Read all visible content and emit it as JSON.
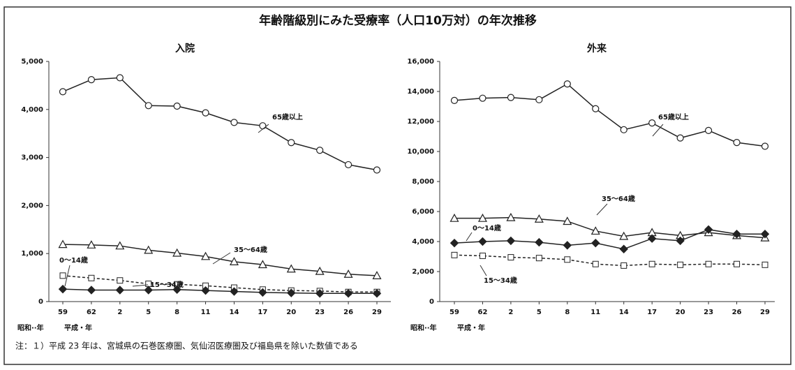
{
  "title": "年齢階級別にみた受療率（人口10万対）の年次推移",
  "note": "注：１）平成 23 年は、宮城県の石巻医療圏、気仙沼医療圏及び福島県を除いた数値である",
  "era_labels": [
    "昭和··年",
    "平成・年"
  ],
  "chart_data": [
    {
      "type": "line",
      "title": "入院",
      "categories": [
        "59",
        "62",
        "2",
        "5",
        "8",
        "11",
        "14",
        "17",
        "20",
        "23",
        "26",
        "29"
      ],
      "ylim": [
        0,
        5000
      ],
      "yticks": [
        0,
        {
          "value": 1000,
          "label": "1,000"
        },
        {
          "value": 2000,
          "label": "2,000"
        },
        {
          "value": 3000,
          "label": "3,000"
        },
        {
          "value": 4000,
          "label": "4,000"
        },
        {
          "value": 5000,
          "label": "5,000"
        }
      ],
      "series": [
        {
          "name": "65歳以上",
          "color": "#222",
          "marker": "circle",
          "dash": false,
          "values": [
            4370,
            4620,
            4660,
            4080,
            4070,
            3930,
            3730,
            3660,
            3310,
            3150,
            2850,
            2740
          ]
        },
        {
          "name": "35～64歳",
          "color": "#222",
          "marker": "triangle",
          "dash": false,
          "values": [
            1190,
            1180,
            1160,
            1070,
            1010,
            940,
            830,
            770,
            680,
            630,
            570,
            540
          ]
        },
        {
          "name": "15～34歳",
          "color": "#222",
          "marker": "square",
          "dash": true,
          "values": [
            540,
            490,
            440,
            370,
            360,
            330,
            290,
            250,
            230,
            220,
            200,
            200
          ]
        },
        {
          "name": "0～14歳",
          "color": "#222",
          "marker": "diamond",
          "dash": false,
          "values": [
            260,
            240,
            240,
            240,
            250,
            230,
            210,
            190,
            180,
            170,
            170,
            170
          ]
        }
      ]
    },
    {
      "type": "line",
      "title": "外来",
      "categories": [
        "59",
        "62",
        "2",
        "5",
        "8",
        "11",
        "14",
        "17",
        "20",
        "23",
        "26",
        "29"
      ],
      "ylim": [
        0,
        16000
      ],
      "yticks": [
        0,
        {
          "value": 2000,
          "label": "2,000"
        },
        {
          "value": 4000,
          "label": "4,000"
        },
        {
          "value": 6000,
          "label": "6,000"
        },
        {
          "value": 8000,
          "label": "8,000"
        },
        {
          "value": 10000,
          "label": "10,000"
        },
        {
          "value": 12000,
          "label": "12,000"
        },
        {
          "value": 14000,
          "label": "14,000"
        },
        {
          "value": 16000,
          "label": "16,000"
        }
      ],
      "series": [
        {
          "name": "65歳以上",
          "color": "#222",
          "marker": "circle",
          "dash": false,
          "values": [
            13400,
            13550,
            13600,
            13450,
            14500,
            12850,
            11450,
            11900,
            10900,
            11400,
            10600,
            10350
          ]
        },
        {
          "name": "35～64歳",
          "color": "#222",
          "marker": "triangle",
          "dash": false,
          "values": [
            5550,
            5550,
            5600,
            5500,
            5350,
            4700,
            4350,
            4600,
            4400,
            4600,
            4400,
            4250
          ]
        },
        {
          "name": "0～14歳",
          "color": "#222",
          "marker": "diamond",
          "dash": false,
          "values": [
            3900,
            4000,
            4050,
            3950,
            3750,
            3900,
            3500,
            4200,
            4050,
            4800,
            4500,
            4500
          ]
        },
        {
          "name": "15～34歳",
          "color": "#222",
          "marker": "square",
          "dash": true,
          "values": [
            3100,
            3050,
            2950,
            2900,
            2800,
            2500,
            2400,
            2500,
            2450,
            2500,
            2500,
            2450
          ]
        }
      ]
    }
  ]
}
